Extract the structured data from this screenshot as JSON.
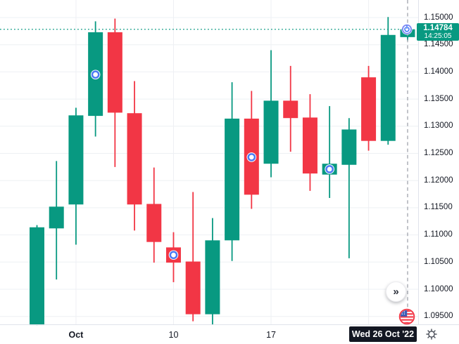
{
  "chart_data": {
    "type": "candlestick",
    "title": "",
    "up_color": "#089981",
    "down_color": "#f23645",
    "grid": true,
    "ylim": [
      1.0925,
      1.1535
    ],
    "y_axis": {
      "side": "right",
      "ticks": [
        "1.15000",
        "1.14500",
        "1.14000",
        "1.13500",
        "1.13000",
        "1.12500",
        "1.12000",
        "1.11500",
        "1.11000",
        "1.10500",
        "1.10000",
        "1.09500"
      ]
    },
    "x_axis": {
      "labels": [
        {
          "bar": 3,
          "text": "Oct",
          "month_start": true
        },
        {
          "bar": 8,
          "text": "10",
          "month_start": false
        },
        {
          "bar": 13,
          "text": "17",
          "month_start": false
        }
      ],
      "gridline_bars": [
        3,
        8,
        13,
        18
      ]
    },
    "candles": [
      {
        "o": 1.0934,
        "h": 1.1118,
        "l": 1.0934,
        "c": 1.1114
      },
      {
        "o": 1.1112,
        "h": 1.1236,
        "l": 1.1018,
        "c": 1.1152
      },
      {
        "o": 1.1156,
        "h": 1.1334,
        "l": 1.1082,
        "c": 1.132
      },
      {
        "o": 1.1319,
        "h": 1.1493,
        "l": 1.1281,
        "c": 1.1473
      },
      {
        "o": 1.1473,
        "h": 1.1498,
        "l": 1.1225,
        "c": 1.1325
      },
      {
        "o": 1.1324,
        "h": 1.1383,
        "l": 1.1108,
        "c": 1.1156
      },
      {
        "o": 1.1157,
        "h": 1.1224,
        "l": 1.1049,
        "c": 1.1087
      },
      {
        "o": 1.1077,
        "h": 1.1105,
        "l": 1.1013,
        "c": 1.1049
      },
      {
        "o": 1.1051,
        "h": 1.1179,
        "l": 1.0941,
        "c": 1.0954
      },
      {
        "o": 1.0954,
        "h": 1.1131,
        "l": 1.0935,
        "c": 1.109
      },
      {
        "o": 1.109,
        "h": 1.1381,
        "l": 1.1052,
        "c": 1.1314
      },
      {
        "o": 1.1314,
        "h": 1.1365,
        "l": 1.1148,
        "c": 1.1174
      },
      {
        "o": 1.1231,
        "h": 1.144,
        "l": 1.1206,
        "c": 1.1347
      },
      {
        "o": 1.1347,
        "h": 1.1411,
        "l": 1.1253,
        "c": 1.1315
      },
      {
        "o": 1.1316,
        "h": 1.1359,
        "l": 1.1181,
        "c": 1.1213
      },
      {
        "o": 1.1211,
        "h": 1.1337,
        "l": 1.1168,
        "c": 1.1231
      },
      {
        "o": 1.1229,
        "h": 1.1315,
        "l": 1.1057,
        "c": 1.1294
      },
      {
        "o": 1.139,
        "h": 1.1411,
        "l": 1.1255,
        "c": 1.1273
      },
      {
        "o": 1.1273,
        "h": 1.1501,
        "l": 1.1266,
        "c": 1.1468
      },
      {
        "o": 1.1464,
        "h": 1.1482,
        "l": 1.1458,
        "c": 1.14784
      }
    ],
    "event_markers": [
      {
        "bar": 4,
        "price": 1.1395
      },
      {
        "bar": 8,
        "price": 1.1063
      },
      {
        "bar": 12,
        "price": 1.1243
      },
      {
        "bar": 16,
        "price": 1.1221
      }
    ],
    "last_price": 1.14784,
    "last_bar": 20,
    "last_price_line": "dotted",
    "last_bar_line": "dashed"
  },
  "price_scale": {
    "last_price_label": "1.14784",
    "last_time_label": "14:25:05",
    "badge_color": "#089981"
  },
  "time_scale": {
    "crosshair_date": "Wed 26 Oct '22",
    "badge_color": "#131722"
  },
  "controls": {
    "go_to_realtime_glyph": "»"
  },
  "colors": {
    "grid": "#eef0f4",
    "axis_border": "#e0e3eb",
    "axis_text": "#131722",
    "marker_ring": "#4c7bf3",
    "status_marker_ring": "#7a87f5",
    "status_marker_glyph": "#2f6af5",
    "dashed_line": "#989ca6",
    "flag_ring": "#f23645",
    "flag_canton": "#3b5db6"
  }
}
